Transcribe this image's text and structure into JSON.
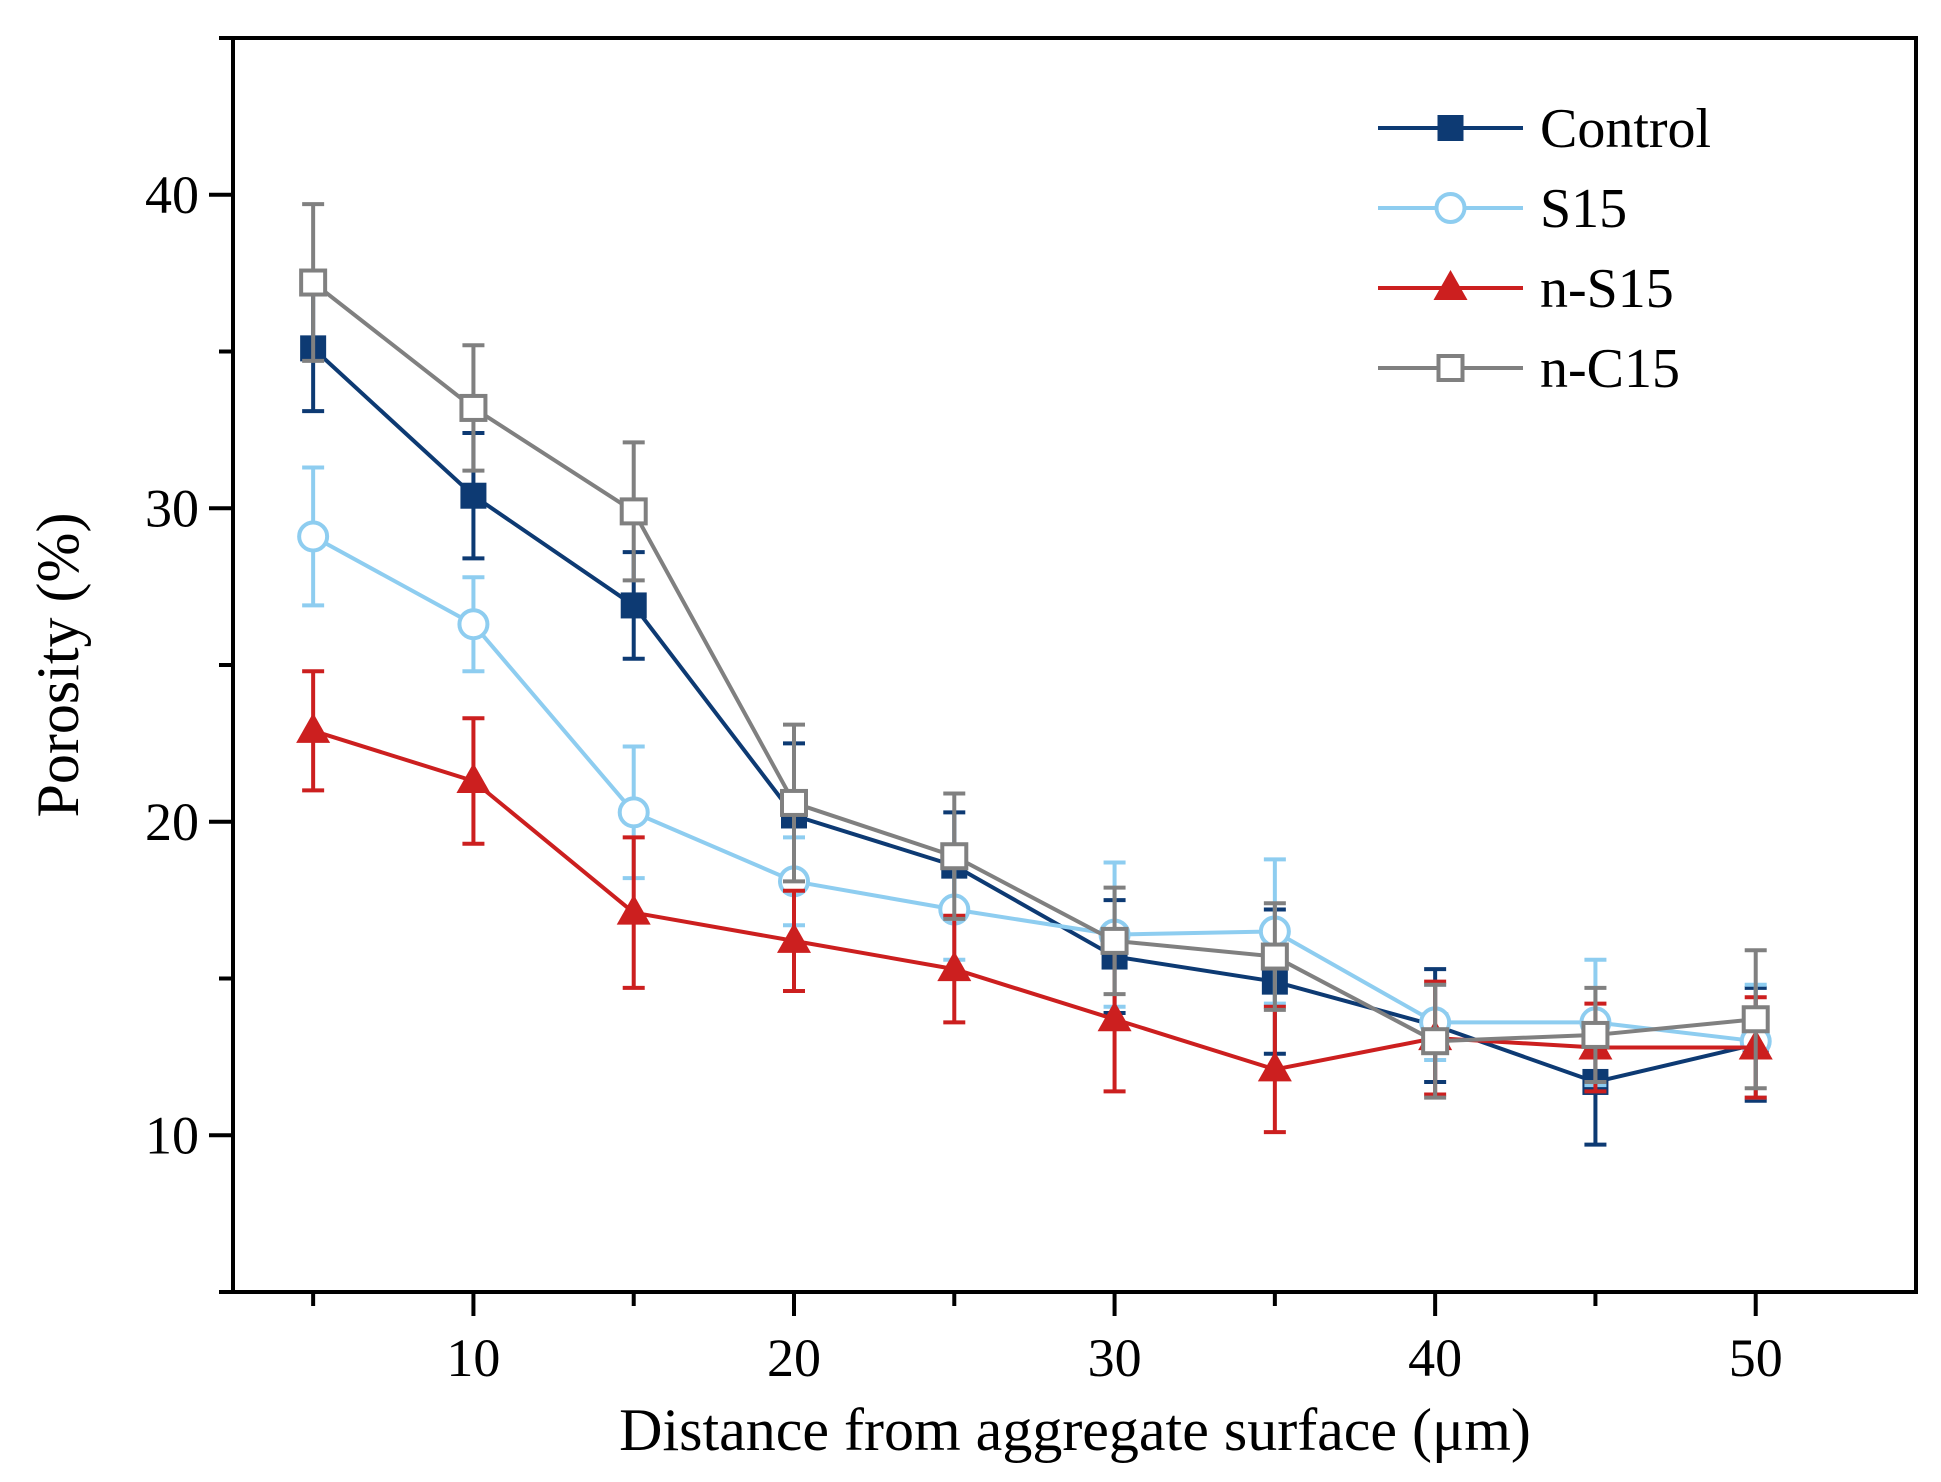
{
  "chart_data": {
    "type": "line",
    "title": "",
    "xlabel": "Distance from aggregate surface (μm)",
    "ylabel": "Porosity (%)",
    "xlim": [
      2.5,
      55
    ],
    "ylim": [
      5,
      45
    ],
    "xticks": [
      10,
      20,
      30,
      40,
      50
    ],
    "yticks": [
      10,
      20,
      30,
      40
    ],
    "x": [
      5,
      10,
      15,
      20,
      25,
      30,
      35,
      40,
      45,
      50
    ],
    "legend_position": "top-right",
    "series": [
      {
        "name": "Control",
        "color": "#0d3a73",
        "marker": "filled-square",
        "values": [
          35.1,
          30.4,
          26.9,
          20.2,
          18.6,
          15.7,
          14.9,
          13.5,
          11.7,
          12.9
        ],
        "errors": [
          2.0,
          2.0,
          1.7,
          2.3,
          1.7,
          1.8,
          2.3,
          1.8,
          2.0,
          1.8
        ]
      },
      {
        "name": "S15",
        "color": "#8ecdf0",
        "marker": "open-circle",
        "values": [
          29.1,
          26.3,
          20.3,
          18.1,
          17.2,
          16.4,
          16.5,
          13.6,
          13.6,
          13.0
        ],
        "errors": [
          2.2,
          1.5,
          2.1,
          1.4,
          1.6,
          2.3,
          2.3,
          1.2,
          2.0,
          1.8
        ]
      },
      {
        "name": "n-S15",
        "color": "#cc1f1f",
        "marker": "filled-triangle",
        "values": [
          22.9,
          21.3,
          17.1,
          16.2,
          15.3,
          13.7,
          12.1,
          13.1,
          12.8,
          12.8
        ],
        "errors": [
          1.9,
          2.0,
          2.4,
          1.6,
          1.7,
          2.3,
          2.0,
          1.8,
          1.4,
          1.6
        ]
      },
      {
        "name": "n-C15",
        "color": "#808080",
        "marker": "open-square",
        "values": [
          37.2,
          33.2,
          29.9,
          20.6,
          18.9,
          16.2,
          15.7,
          13.0,
          13.2,
          13.7
        ],
        "errors": [
          2.5,
          2.0,
          2.2,
          2.5,
          2.0,
          1.7,
          1.7,
          1.8,
          1.5,
          2.2
        ]
      }
    ]
  }
}
